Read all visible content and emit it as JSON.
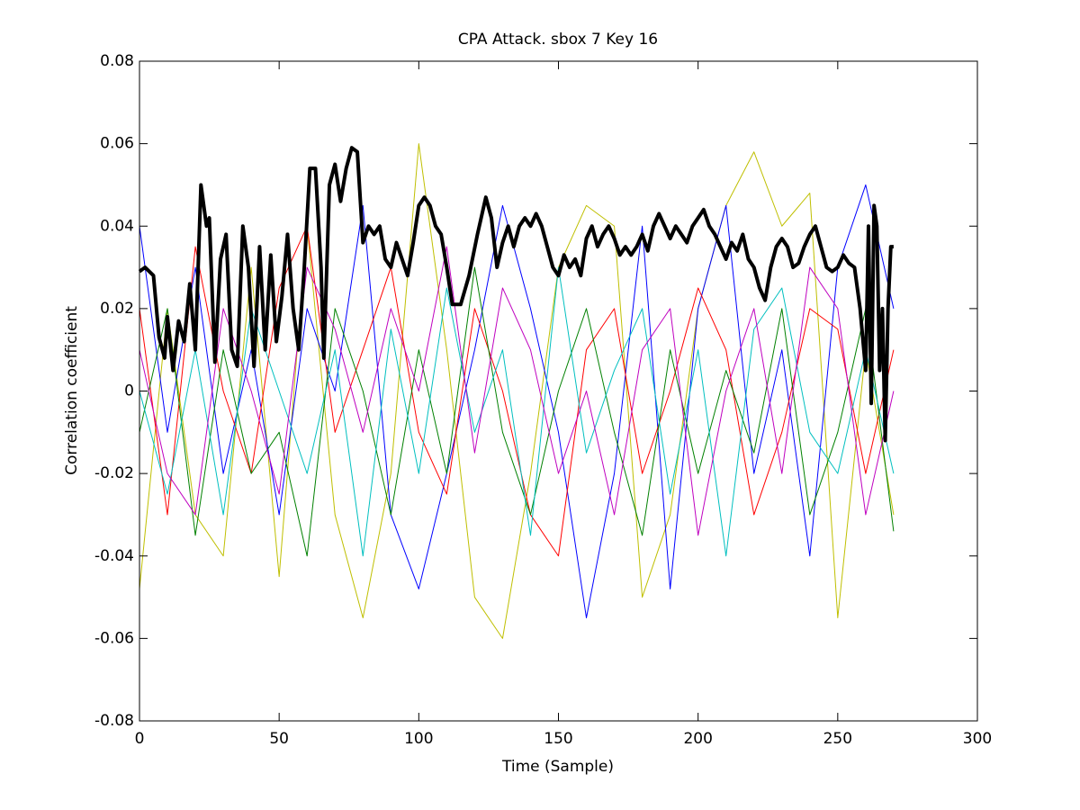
{
  "chart_data": {
    "type": "line",
    "title": "CPA Attack. sbox 7 Key 16",
    "x_label": "Time (Sample)",
    "y_label": "Correlation coefficient",
    "xlim": [
      0,
      300
    ],
    "xticks": [
      0,
      50,
      100,
      150,
      200,
      250,
      300
    ],
    "ylim": [
      -0.08,
      0.08
    ],
    "yticks": [
      -0.08,
      -0.06,
      -0.04,
      -0.02,
      0,
      0.02,
      0.04,
      0.06,
      0.08
    ],
    "grid": false,
    "x": [
      0,
      10,
      20,
      30,
      40,
      50,
      60,
      70,
      80,
      90,
      100,
      110,
      120,
      130,
      140,
      150,
      160,
      170,
      180,
      190,
      200,
      210,
      220,
      230,
      240,
      250,
      260,
      270
    ],
    "series": [
      {
        "color": "#bfbf00",
        "width": 1,
        "values": [
          -0.048,
          0.02,
          -0.03,
          -0.04,
          0.03,
          -0.045,
          0.04,
          -0.03,
          -0.055,
          -0.02,
          0.06,
          0.01,
          -0.05,
          -0.06,
          -0.02,
          0.03,
          0.045,
          0.04,
          -0.05,
          -0.03,
          0.02,
          0.045,
          0.058,
          0.04,
          0.048,
          -0.055,
          0.01,
          -0.03
        ]
      },
      {
        "color": "#0000ff",
        "width": 1,
        "values": [
          0.04,
          -0.01,
          0.03,
          -0.02,
          0.01,
          -0.03,
          0.02,
          0.0,
          0.045,
          -0.03,
          -0.048,
          -0.02,
          0.01,
          0.045,
          0.02,
          -0.01,
          -0.055,
          -0.02,
          0.04,
          -0.048,
          0.02,
          0.045,
          -0.02,
          0.01,
          -0.04,
          0.03,
          0.05,
          0.02
        ]
      },
      {
        "color": "#ff0000",
        "width": 1,
        "values": [
          0.02,
          -0.03,
          0.035,
          0.0,
          -0.02,
          0.025,
          0.04,
          -0.01,
          0.01,
          0.03,
          -0.01,
          -0.025,
          0.02,
          0.0,
          -0.03,
          -0.04,
          0.01,
          0.02,
          -0.02,
          0.0,
          0.025,
          0.01,
          -0.03,
          -0.01,
          0.02,
          0.015,
          -0.02,
          0.01
        ]
      },
      {
        "color": "#008000",
        "width": 1,
        "values": [
          -0.01,
          0.02,
          -0.035,
          0.01,
          -0.02,
          -0.01,
          -0.04,
          0.02,
          0.0,
          -0.03,
          0.01,
          -0.02,
          0.03,
          -0.01,
          -0.03,
          0.0,
          0.02,
          -0.01,
          -0.035,
          0.01,
          -0.02,
          0.005,
          -0.015,
          0.02,
          -0.03,
          -0.01,
          0.02,
          -0.034
        ]
      },
      {
        "color": "#00bfbf",
        "width": 1,
        "values": [
          0.0,
          -0.025,
          0.01,
          -0.03,
          0.02,
          0.0,
          -0.02,
          0.01,
          -0.04,
          0.015,
          -0.02,
          0.025,
          -0.01,
          0.01,
          -0.035,
          0.03,
          -0.015,
          0.005,
          0.02,
          -0.025,
          0.01,
          -0.04,
          0.015,
          0.025,
          -0.01,
          -0.02,
          0.01,
          -0.02
        ]
      },
      {
        "color": "#bf00bf",
        "width": 1,
        "values": [
          0.01,
          -0.02,
          -0.03,
          0.02,
          0.0,
          -0.025,
          0.03,
          0.015,
          -0.01,
          0.02,
          0.0,
          0.035,
          -0.015,
          0.025,
          0.01,
          -0.02,
          0.0,
          -0.03,
          0.01,
          0.02,
          -0.035,
          0.0,
          0.02,
          -0.02,
          0.03,
          0.02,
          -0.03,
          0.0
        ]
      },
      {
        "color": "#000000",
        "width": 4,
        "x": [
          0,
          2,
          5,
          7,
          9,
          10,
          12,
          14,
          16,
          18,
          20,
          22,
          24,
          25,
          27,
          29,
          31,
          33,
          35,
          37,
          39,
          41,
          43,
          45,
          47,
          49,
          51,
          53,
          55,
          57,
          59,
          61,
          63,
          65,
          66,
          68,
          70,
          72,
          74,
          76,
          78,
          80,
          82,
          84,
          86,
          88,
          90,
          92,
          94,
          96,
          98,
          100,
          102,
          104,
          106,
          108,
          110,
          112,
          115,
          118,
          121,
          124,
          126,
          128,
          130,
          132,
          134,
          136,
          138,
          140,
          142,
          144,
          146,
          148,
          150,
          152,
          154,
          156,
          158,
          160,
          162,
          164,
          166,
          168,
          170,
          172,
          174,
          176,
          178,
          180,
          182,
          184,
          186,
          188,
          190,
          192,
          194,
          196,
          198,
          200,
          202,
          204,
          206,
          208,
          210,
          212,
          214,
          216,
          218,
          220,
          222,
          224,
          226,
          228,
          230,
          232,
          234,
          236,
          238,
          240,
          242,
          244,
          246,
          248,
          250,
          252,
          254,
          256,
          258,
          260,
          261,
          262,
          263,
          264,
          265,
          266,
          267,
          268,
          269,
          270
        ],
        "values": [
          0.029,
          0.03,
          0.028,
          0.013,
          0.008,
          0.018,
          0.005,
          0.017,
          0.012,
          0.026,
          0.01,
          0.05,
          0.04,
          0.042,
          0.007,
          0.032,
          0.038,
          0.01,
          0.006,
          0.04,
          0.03,
          0.006,
          0.035,
          0.01,
          0.033,
          0.012,
          0.023,
          0.038,
          0.02,
          0.01,
          0.03,
          0.054,
          0.054,
          0.03,
          0.008,
          0.05,
          0.055,
          0.046,
          0.054,
          0.059,
          0.058,
          0.036,
          0.04,
          0.038,
          0.04,
          0.032,
          0.03,
          0.036,
          0.032,
          0.028,
          0.036,
          0.045,
          0.047,
          0.045,
          0.04,
          0.038,
          0.03,
          0.021,
          0.021,
          0.028,
          0.038,
          0.047,
          0.042,
          0.03,
          0.036,
          0.04,
          0.035,
          0.04,
          0.042,
          0.04,
          0.043,
          0.04,
          0.035,
          0.03,
          0.028,
          0.033,
          0.03,
          0.032,
          0.028,
          0.037,
          0.04,
          0.035,
          0.038,
          0.04,
          0.037,
          0.033,
          0.035,
          0.033,
          0.035,
          0.038,
          0.034,
          0.04,
          0.043,
          0.04,
          0.037,
          0.04,
          0.038,
          0.036,
          0.04,
          0.042,
          0.044,
          0.04,
          0.038,
          0.035,
          0.032,
          0.036,
          0.034,
          0.038,
          0.032,
          0.03,
          0.025,
          0.022,
          0.03,
          0.035,
          0.037,
          0.035,
          0.03,
          0.031,
          0.035,
          0.038,
          0.04,
          0.035,
          0.03,
          0.029,
          0.03,
          0.033,
          0.031,
          0.03,
          0.02,
          0.005,
          0.04,
          -0.003,
          0.045,
          0.04,
          0.005,
          0.02,
          -0.012,
          0.02,
          0.035,
          0.035
        ]
      }
    ]
  }
}
